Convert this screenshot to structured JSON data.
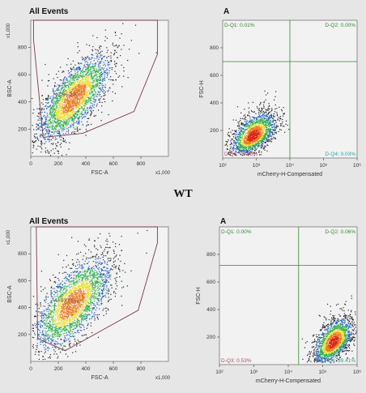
{
  "genotype_label": "WT",
  "colors": {
    "gate": "#7a3a4a",
    "quad": "#2e8b2e",
    "density_low": "#1f5fbf",
    "density_mid": "#2cb34a",
    "density_high": "#f0e020",
    "density_peak": "#e02010"
  },
  "chart_data": [
    {
      "type": "scatter",
      "title": "All Events",
      "xlabel": "FSC-A",
      "ylabel": "BSC-A",
      "xlim": [
        0,
        1000
      ],
      "ylim": [
        0,
        1000
      ],
      "x_ticks": [
        "0",
        "200",
        "400",
        "600",
        "800"
      ],
      "x_multiplier": "x1,000",
      "y_ticks": [
        "200",
        "400",
        "600",
        "800"
      ],
      "y_multiplier": "x1,000",
      "gate": {
        "name": "A",
        "percent_label": "A: 96.2%",
        "polygon": [
          [
            20,
            860
          ],
          [
            90,
            140
          ],
          [
            380,
            170
          ],
          [
            750,
            330
          ],
          [
            920,
            750
          ],
          [
            920,
            1000
          ],
          [
            20,
            1000
          ]
        ]
      },
      "population": {
        "center": [
          310,
          430
        ],
        "spread": [
          130,
          160
        ],
        "correlation": 0.7
      }
    },
    {
      "type": "scatter",
      "title": "A",
      "xlabel": "mCherry-H-Compensated",
      "ylabel": "FSC-H",
      "xscale": "log",
      "xlim": [
        100,
        1000000
      ],
      "ylim": [
        0,
        1000
      ],
      "x_ticks": [
        "10²",
        "10³",
        "10⁴",
        "10⁵",
        "10⁶"
      ],
      "y_ticks": [
        "200",
        "400",
        "600",
        "800"
      ],
      "quadrant_divider": {
        "x": 10000,
        "y": 700
      },
      "quadrants": [
        {
          "label": "D-Q1: 0.01%",
          "position": "top-left"
        },
        {
          "label": "D-Q2: 0.00%",
          "position": "top-right"
        },
        {
          "label": "D-Q3: 99.98%",
          "position": "bottom-left"
        },
        {
          "label": "D-Q4: 0.03%",
          "position": "bottom-right"
        }
      ],
      "population": {
        "center_log10x": 2.9,
        "center_y": 160,
        "spread_log10x": 0.35,
        "spread_y": 70
      }
    },
    {
      "type": "scatter",
      "title": "All Events",
      "xlabel": "FSC-A",
      "ylabel": "BSC-A",
      "xlim": [
        0,
        1000
      ],
      "ylim": [
        0,
        1000
      ],
      "x_ticks": [
        "0",
        "200",
        "400",
        "600",
        "800"
      ],
      "x_multiplier": "x1,000",
      "y_ticks": [
        "200",
        "400",
        "600",
        "800"
      ],
      "y_multiplier": "x1,000",
      "gate": {
        "name": "A",
        "percent_label": "A: 93.85%",
        "polygon": [
          [
            50,
            170
          ],
          [
            250,
            80
          ],
          [
            780,
            380
          ],
          [
            920,
            880
          ],
          [
            920,
            1000
          ],
          [
            40,
            1000
          ]
        ]
      },
      "population": {
        "center": [
          300,
          430
        ],
        "spread": [
          140,
          170
        ],
        "correlation": 0.65
      }
    },
    {
      "type": "scatter",
      "title": "A",
      "xlabel": "mCherry-H-Compensated",
      "ylabel": "FSC-H",
      "xscale": "log",
      "xlim": [
        100,
        1000000
      ],
      "ylim": [
        0,
        1000
      ],
      "x_ticks": [
        "10²",
        "10³",
        "10⁴",
        "10⁵",
        "10⁶"
      ],
      "y_ticks": [
        "200",
        "400",
        "600",
        "800"
      ],
      "quadrant_divider": {
        "x": 20000,
        "y": 720
      },
      "quadrants": [
        {
          "label": "D-Q1: 0.00%",
          "position": "top-left"
        },
        {
          "label": "D-Q2: 0.06%",
          "position": "top-right"
        },
        {
          "label": "D-Q3: 0.53%",
          "position": "bottom-left"
        },
        {
          "label": "D-Q4: 99.41%",
          "position": "bottom-right"
        }
      ],
      "population": {
        "center_log10x": 5.3,
        "center_y": 160,
        "spread_log10x": 0.3,
        "spread_y": 75
      }
    }
  ]
}
